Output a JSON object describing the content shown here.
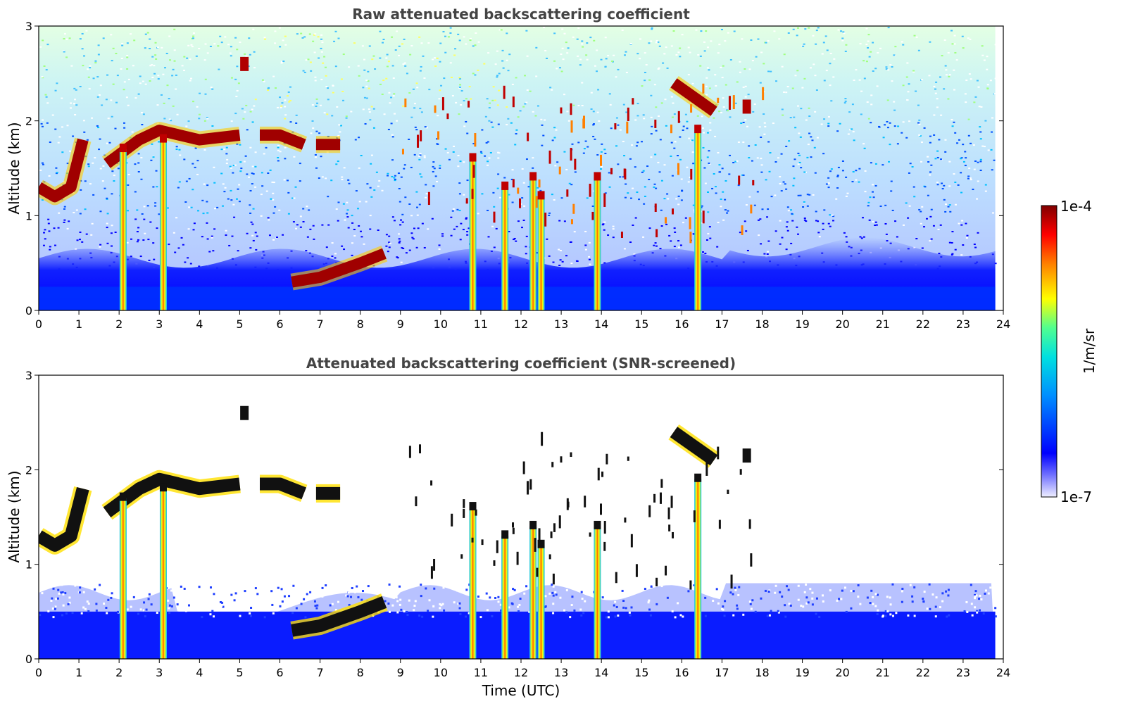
{
  "chart_data": [
    {
      "type": "heatmap",
      "title": "Raw attenuated backscattering coefficient",
      "xlabel": "",
      "ylabel": "Altitude (km)",
      "xlim": [
        0,
        24
      ],
      "ylim": [
        0,
        3
      ],
      "xticks": [
        "0",
        "1",
        "2",
        "3",
        "4",
        "5",
        "6",
        "7",
        "8",
        "9",
        "10",
        "11",
        "12",
        "13",
        "14",
        "15",
        "16",
        "17",
        "18",
        "19",
        "20",
        "21",
        "22",
        "23",
        "24"
      ],
      "yticks": [
        "0",
        "1",
        "2",
        "3"
      ],
      "screened": false,
      "features": [
        {
          "kind": "cloud_layer",
          "x": [
            0.0,
            0.4,
            0.8,
            1.1
          ],
          "y": [
            1.3,
            1.2,
            1.3,
            1.8
          ]
        },
        {
          "kind": "cloud_layer",
          "x": [
            1.7,
            2.5,
            3.0,
            4.0,
            5.0
          ],
          "y": [
            1.55,
            1.8,
            1.9,
            1.8,
            1.85
          ]
        },
        {
          "kind": "cloud_layer",
          "x": [
            5.5,
            6.0,
            6.6
          ],
          "y": [
            1.85,
            1.85,
            1.75
          ]
        },
        {
          "kind": "cloud_layer",
          "x": [
            6.9,
            7.5
          ],
          "y": [
            1.75,
            1.75
          ]
        },
        {
          "kind": "cloud_layer",
          "x": [
            6.3,
            7.0,
            8.0,
            8.6
          ],
          "y": [
            0.3,
            0.35,
            0.5,
            0.6
          ]
        },
        {
          "kind": "cloud_layer",
          "x": [
            15.8,
            16.3,
            16.8
          ],
          "y": [
            2.4,
            2.25,
            2.1
          ]
        },
        {
          "kind": "cloud_patch",
          "x": [
            5.1
          ],
          "y": [
            2.6
          ]
        },
        {
          "kind": "cloud_patch",
          "x": [
            17.6
          ],
          "y": [
            2.15
          ]
        },
        {
          "kind": "rain_shaft",
          "x": 2.1,
          "top": 1.7
        },
        {
          "kind": "rain_shaft",
          "x": 3.1,
          "top": 1.8
        },
        {
          "kind": "rain_shaft",
          "x": 10.8,
          "top": 1.6
        },
        {
          "kind": "rain_shaft",
          "x": 11.6,
          "top": 1.3
        },
        {
          "kind": "rain_shaft",
          "x": 12.3,
          "top": 1.4
        },
        {
          "kind": "rain_shaft",
          "x": 12.5,
          "top": 1.2
        },
        {
          "kind": "rain_shaft",
          "x": 13.9,
          "top": 1.4
        },
        {
          "kind": "rain_shaft",
          "x": 16.4,
          "top": 1.9
        }
      ]
    },
    {
      "type": "heatmap",
      "title": "Attenuated backscattering coefficient (SNR-screened)",
      "xlabel": "Time (UTC)",
      "ylabel": "Altitude (km)",
      "xlim": [
        0,
        24
      ],
      "ylim": [
        0,
        3
      ],
      "xticks": [
        "0",
        "1",
        "2",
        "3",
        "4",
        "5",
        "6",
        "7",
        "8",
        "9",
        "10",
        "11",
        "12",
        "13",
        "14",
        "15",
        "16",
        "17",
        "18",
        "19",
        "20",
        "21",
        "22",
        "23",
        "24"
      ],
      "yticks": [
        "0",
        "1",
        "2",
        "3"
      ],
      "screened": true
    }
  ],
  "colorbar": {
    "label": "1/m/sr",
    "max_label": "1e-4",
    "min_label": "1e-7",
    "colormap": [
      "#eeeeff",
      "#0000ff",
      "#00a0ff",
      "#00ffb0",
      "#ffff00",
      "#ff8000",
      "#ff0000",
      "#800000"
    ]
  }
}
